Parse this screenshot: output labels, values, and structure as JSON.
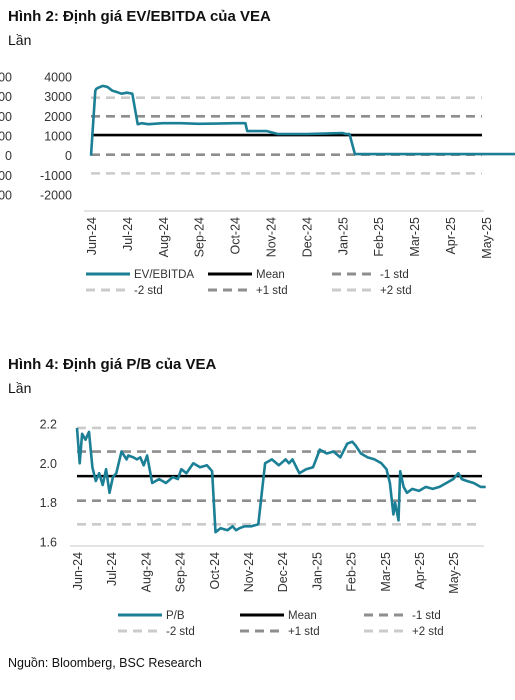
{
  "figure1": {
    "title": "Hình 2: Định giá EV/EBITDA của VEA",
    "unit": "Lần"
  },
  "figure2": {
    "title": "Hình 4: Định giá P/B của VEA",
    "unit": "Lần"
  },
  "source": "Nguồn: Bloomberg, BSC Research",
  "colors": {
    "series": "#1b7f96",
    "mean": "#000000",
    "std1": "#8e8e8e",
    "std2": "#cbcbcb"
  },
  "chart_data": [
    {
      "type": "line",
      "title": "Hình 2: Định giá EV/EBITDA của VEA",
      "ylabel": "Lần",
      "ylim": [
        -2000,
        4000
      ],
      "yticks": [
        "4000",
        "3000",
        "2000",
        "1000",
        "0",
        "-1000",
        "-2000"
      ],
      "categories": [
        "Jun-24",
        "Jul-24",
        "Aug-24",
        "Sep-24",
        "Oct-24",
        "Nov-24",
        "Dec-24",
        "Jan-25",
        "Feb-25",
        "Mar-25",
        "Apr-25",
        "May-25"
      ],
      "series": [
        {
          "name": "EV/EBITDA",
          "x": [
            0.0,
            0.12,
            0.15,
            0.2,
            0.32,
            0.45,
            0.6,
            0.7,
            0.85,
            1.0,
            1.15,
            1.3,
            1.4,
            1.6,
            2.0,
            2.5,
            3.0,
            3.5,
            4.0,
            4.3,
            4.35,
            4.5,
            4.9,
            5.2,
            6.0,
            6.5,
            7.0,
            7.1,
            7.2,
            7.35,
            8.0,
            9.0,
            10.0,
            11.0,
            11.9
          ],
          "values": [
            0,
            3300,
            3400,
            3450,
            3550,
            3500,
            3300,
            3250,
            3150,
            3200,
            3150,
            1600,
            1650,
            1600,
            1650,
            1650,
            1620,
            1630,
            1650,
            1650,
            1250,
            1250,
            1250,
            1100,
            1100,
            1120,
            1150,
            1100,
            1100,
            80,
            80,
            80,
            80,
            80,
            80
          ]
        },
        {
          "name": "Mean",
          "value": 1050
        },
        {
          "name": "-1 std",
          "value": 50
        },
        {
          "name": "-2 std",
          "value": -900
        },
        {
          "name": "+1 std",
          "value": 2000
        },
        {
          "name": "+2 std",
          "value": 2950
        }
      ],
      "legend": [
        "EV/EBITDA",
        "Mean",
        "-1 std",
        "-2 std",
        "+1 std",
        "+2 std"
      ],
      "legend_position": "bottom",
      "grid": false
    },
    {
      "type": "line",
      "title": "Hình 4: Định giá P/B của VEA",
      "ylabel": "Lần",
      "ylim": [
        1.6,
        2.2
      ],
      "yticks": [
        "2.2",
        "2.0",
        "1.8",
        "1.6"
      ],
      "categories": [
        "Jun-24",
        "Jul-24",
        "Aug-24",
        "Sep-24",
        "Oct-24",
        "Nov-24",
        "Dec-24",
        "Jan-25",
        "Feb-25",
        "Mar-25",
        "Apr-25",
        "May-25"
      ],
      "series": [
        {
          "name": "P/B",
          "x": [
            0.0,
            0.08,
            0.15,
            0.25,
            0.35,
            0.45,
            0.55,
            0.65,
            0.75,
            0.85,
            0.95,
            1.05,
            1.15,
            1.3,
            1.45,
            1.5,
            1.65,
            1.75,
            1.85,
            1.95,
            2.05,
            2.2,
            2.4,
            2.6,
            2.8,
            2.95,
            3.05,
            3.2,
            3.4,
            3.6,
            3.8,
            3.95,
            4.05,
            4.2,
            4.4,
            4.55,
            4.65,
            4.75,
            4.9,
            5.1,
            5.3,
            5.5,
            5.7,
            5.9,
            6.1,
            6.2,
            6.3,
            6.5,
            6.7,
            6.9,
            7.1,
            7.3,
            7.5,
            7.7,
            7.9,
            8.05,
            8.15,
            8.3,
            8.5,
            8.7,
            8.9,
            9.05,
            9.15,
            9.25,
            9.3,
            9.4,
            9.45,
            9.55,
            9.65,
            9.8,
            10.0,
            10.2,
            10.4,
            10.6,
            10.8,
            11.0,
            11.15,
            11.25,
            11.4,
            11.6,
            11.8,
            11.95
          ],
          "values": [
            2.18,
            2.0,
            2.15,
            2.12,
            2.16,
            1.98,
            1.91,
            1.95,
            1.89,
            1.97,
            1.85,
            1.93,
            1.95,
            2.06,
            2.02,
            2.04,
            2.03,
            2.02,
            2.03,
            1.99,
            2.04,
            1.9,
            1.92,
            1.9,
            1.93,
            1.92,
            1.97,
            1.95,
            2.0,
            1.98,
            1.99,
            1.96,
            1.65,
            1.67,
            1.66,
            1.68,
            1.66,
            1.67,
            1.68,
            1.68,
            1.69,
            2.0,
            2.02,
            1.99,
            2.02,
            2.0,
            2.02,
            1.95,
            1.97,
            1.98,
            2.07,
            2.05,
            2.06,
            2.03,
            2.1,
            2.11,
            2.09,
            2.05,
            2.03,
            2.02,
            2.0,
            1.97,
            1.9,
            1.74,
            1.8,
            1.71,
            1.96,
            1.88,
            1.85,
            1.87,
            1.86,
            1.88,
            1.87,
            1.88,
            1.9,
            1.92,
            1.95,
            1.92,
            1.91,
            1.9,
            1.88,
            1.88
          ]
        },
        {
          "name": "Mean",
          "value": 1.935
        },
        {
          "name": "-1 std",
          "value": 1.81
        },
        {
          "name": "-2 std",
          "value": 1.69
        },
        {
          "name": "+1 std",
          "value": 2.06
        },
        {
          "name": "+2 std",
          "value": 2.18
        }
      ],
      "legend": [
        "P/B",
        "Mean",
        "-1 std",
        "-2 std",
        "+1 std",
        "+2 std"
      ],
      "legend_position": "bottom",
      "grid": false
    }
  ]
}
